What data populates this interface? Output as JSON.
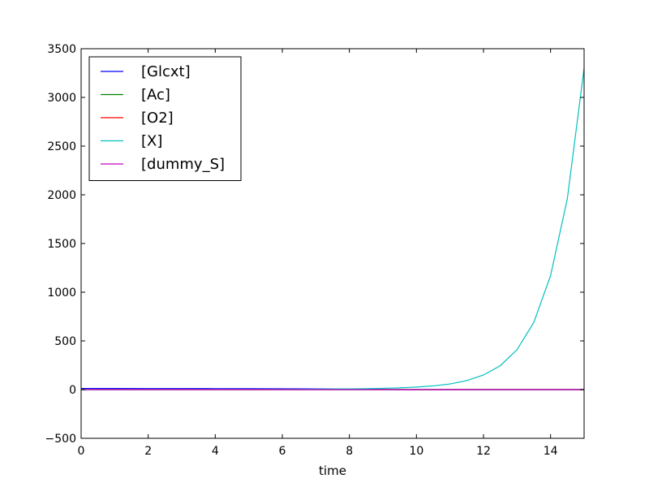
{
  "chart_data": {
    "type": "line",
    "title": "",
    "xlabel": "time",
    "ylabel": "",
    "xlim": [
      0,
      15
    ],
    "ylim": [
      -500,
      3500
    ],
    "xticks": [
      0,
      2,
      4,
      6,
      8,
      10,
      12,
      14
    ],
    "yticks": [
      -500,
      0,
      500,
      1000,
      1500,
      2000,
      2500,
      3000,
      3500
    ],
    "xtick_labels": [
      "0",
      "2",
      "4",
      "6",
      "8",
      "10",
      "12",
      "14"
    ],
    "ytick_labels": [
      "−500",
      "0",
      "500",
      "1000",
      "1500",
      "2000",
      "2500",
      "3000",
      "3500"
    ],
    "grid": false,
    "legend": "top-left",
    "x": [
      0,
      1,
      2,
      3,
      4,
      5,
      6,
      7,
      8,
      8.5,
      9,
      9.5,
      10,
      10.5,
      11,
      11.5,
      12,
      12.5,
      13,
      13.5,
      14,
      14.5,
      15
    ],
    "series": [
      {
        "name": "[Glcxt]",
        "color": "#0000ff",
        "values": [
          12,
          11.5,
          11,
          10.5,
          10,
          9.5,
          8.8,
          7.5,
          5,
          3.5,
          1.5,
          0,
          0,
          0,
          0,
          0,
          0,
          0,
          0,
          0,
          0,
          0,
          0
        ]
      },
      {
        "name": "[Ac]",
        "color": "#008000",
        "values": [
          0,
          0,
          0,
          0,
          0,
          0,
          0,
          0,
          0,
          0,
          0,
          0,
          0,
          0,
          0,
          0,
          0,
          0,
          0,
          0,
          0,
          0,
          0
        ]
      },
      {
        "name": "[O2]",
        "color": "#ff0000",
        "values": [
          0,
          0,
          0,
          0,
          0,
          0,
          0,
          0,
          0,
          0,
          0,
          0,
          0,
          0,
          0,
          0,
          0,
          0,
          0,
          0,
          0,
          0,
          0
        ]
      },
      {
        "name": "[X]",
        "color": "#00bfbf",
        "values": [
          0.1,
          0.15,
          0.25,
          0.45,
          0.8,
          1.4,
          2.3,
          4,
          7,
          9.5,
          13,
          18,
          26,
          38,
          58,
          92,
          150,
          245,
          410,
          690,
          1170,
          1960,
          3300
        ]
      },
      {
        "name": "[dummy_S]",
        "color": "#bf00bf",
        "values": [
          0,
          0,
          0,
          0,
          0,
          0,
          0,
          0,
          0,
          0,
          0,
          0,
          0,
          0,
          0,
          0,
          0,
          0,
          0,
          0,
          0,
          0,
          0
        ]
      }
    ]
  }
}
